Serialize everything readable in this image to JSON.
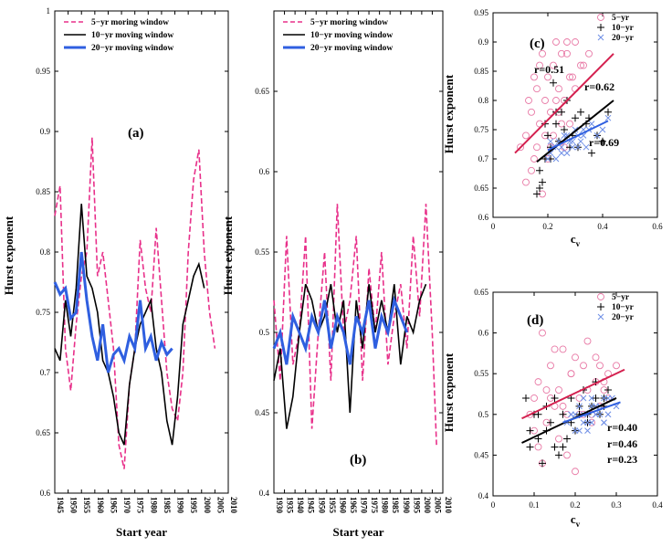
{
  "chart_data": [
    {
      "panel": "(a)",
      "type": "line",
      "ylabel": "Hurst exponent",
      "xlabel": "Start year",
      "ylim": [
        0.6,
        1.0
      ],
      "yticks": [
        "0.6",
        "0.65",
        "0.7",
        "0.75",
        "0.8",
        "0.85",
        "0.9",
        "0.95",
        "1"
      ],
      "xticks": [
        "1945",
        "1950",
        "1955",
        "1960",
        "1965",
        "1970",
        "1975",
        "1980",
        "1985",
        "1990",
        "1995",
        "2000",
        "2005",
        "2010"
      ],
      "xlim": [
        1945,
        2010
      ],
      "legend": "top",
      "series": [
        {
          "name": "5−yr moring window",
          "color": "#e8308a",
          "dash": "6,3",
          "x": [
            1945,
            1947,
            1949,
            1951,
            1953,
            1955,
            1957,
            1959,
            1961,
            1963,
            1965,
            1967,
            1969,
            1971,
            1973,
            1975,
            1977,
            1979,
            1981,
            1983,
            1985,
            1987,
            1989,
            1991,
            1993,
            1995,
            1997,
            1999,
            2001,
            2003,
            2005
          ],
          "values": [
            0.83,
            0.855,
            0.72,
            0.685,
            0.74,
            0.78,
            0.8,
            0.895,
            0.78,
            0.8,
            0.76,
            0.72,
            0.64,
            0.62,
            0.69,
            0.72,
            0.81,
            0.77,
            0.75,
            0.82,
            0.76,
            0.7,
            0.67,
            0.66,
            0.7,
            0.8,
            0.86,
            0.885,
            0.8,
            0.75,
            0.72
          ]
        },
        {
          "name": "10−yr moving window",
          "color": "#000000",
          "dash": "",
          "x": [
            1945,
            1947,
            1949,
            1951,
            1953,
            1955,
            1957,
            1959,
            1961,
            1963,
            1965,
            1967,
            1969,
            1971,
            1973,
            1975,
            1977,
            1979,
            1981,
            1983,
            1985,
            1987,
            1989,
            1991,
            1993,
            1995,
            1997,
            1999,
            2001
          ],
          "values": [
            0.72,
            0.71,
            0.76,
            0.73,
            0.77,
            0.84,
            0.78,
            0.77,
            0.75,
            0.71,
            0.7,
            0.68,
            0.65,
            0.64,
            0.69,
            0.72,
            0.74,
            0.75,
            0.76,
            0.72,
            0.7,
            0.66,
            0.64,
            0.68,
            0.74,
            0.76,
            0.78,
            0.79,
            0.77
          ]
        },
        {
          "name": "20−yr moving window",
          "color": "#2f5fe0",
          "dash": "",
          "x": [
            1945,
            1947,
            1949,
            1951,
            1953,
            1955,
            1957,
            1959,
            1961,
            1963,
            1965,
            1967,
            1969,
            1971,
            1973,
            1975,
            1977,
            1979,
            1981,
            1983,
            1985,
            1987,
            1989
          ],
          "values": [
            0.775,
            0.765,
            0.77,
            0.745,
            0.75,
            0.8,
            0.76,
            0.73,
            0.71,
            0.74,
            0.7,
            0.715,
            0.72,
            0.71,
            0.73,
            0.72,
            0.76,
            0.72,
            0.73,
            0.71,
            0.725,
            0.715,
            0.72
          ]
        }
      ]
    },
    {
      "panel": "(b)",
      "type": "line",
      "ylabel": "Hurst exponent",
      "xlabel": "Start year",
      "ylim": [
        0.4,
        0.7
      ],
      "yticks": [
        "0.4",
        "0.45",
        "0.5",
        "0.55",
        "0.6",
        "0.65"
      ],
      "xticks": [
        "1930",
        "1935",
        "1940",
        "1945",
        "1950",
        "1955",
        "1960",
        "1965",
        "1970",
        "1975",
        "1980",
        "1985",
        "1990",
        "1995",
        "2000",
        "2005",
        "2010"
      ],
      "xlim": [
        1930,
        2010
      ],
      "legend": "top",
      "series": [
        {
          "name": "5−yr moring window",
          "color": "#e8308a",
          "dash": "6,3",
          "x": [
            1930,
            1933,
            1936,
            1939,
            1942,
            1945,
            1948,
            1951,
            1954,
            1957,
            1960,
            1963,
            1966,
            1969,
            1972,
            1975,
            1978,
            1981,
            1984,
            1987,
            1990,
            1993,
            1996,
            1999,
            2002,
            2005,
            2007
          ],
          "values": [
            0.52,
            0.47,
            0.56,
            0.48,
            0.5,
            0.56,
            0.44,
            0.5,
            0.55,
            0.47,
            0.58,
            0.5,
            0.52,
            0.56,
            0.47,
            0.54,
            0.5,
            0.55,
            0.48,
            0.51,
            0.53,
            0.49,
            0.56,
            0.51,
            0.58,
            0.5,
            0.43
          ]
        },
        {
          "name": "10−yr moving window",
          "color": "#000000",
          "dash": "",
          "x": [
            1930,
            1933,
            1936,
            1939,
            1942,
            1945,
            1948,
            1951,
            1954,
            1957,
            1960,
            1963,
            1966,
            1969,
            1972,
            1975,
            1978,
            1981,
            1984,
            1987,
            1990,
            1993,
            1996,
            1999,
            2002
          ],
          "values": [
            0.47,
            0.49,
            0.44,
            0.46,
            0.5,
            0.53,
            0.52,
            0.5,
            0.51,
            0.53,
            0.5,
            0.52,
            0.45,
            0.52,
            0.49,
            0.53,
            0.5,
            0.52,
            0.5,
            0.53,
            0.48,
            0.51,
            0.5,
            0.52,
            0.53
          ]
        },
        {
          "name": "20−yr moving window",
          "color": "#2f5fe0",
          "dash": "",
          "x": [
            1930,
            1933,
            1936,
            1939,
            1942,
            1945,
            1948,
            1951,
            1954,
            1957,
            1960,
            1963,
            1966,
            1969,
            1972,
            1975,
            1978,
            1981,
            1984,
            1987,
            1990,
            1993
          ],
          "values": [
            0.49,
            0.5,
            0.48,
            0.51,
            0.5,
            0.49,
            0.51,
            0.5,
            0.52,
            0.49,
            0.51,
            0.5,
            0.48,
            0.51,
            0.5,
            0.52,
            0.49,
            0.51,
            0.5,
            0.52,
            0.51,
            0.5
          ]
        }
      ]
    },
    {
      "panel": "(c)",
      "type": "scatter",
      "ylabel": "Hurst exponent",
      "xlabel": "c",
      "xlabel_sub": "v",
      "xlim": [
        0,
        0.6
      ],
      "ylim": [
        0.6,
        0.95
      ],
      "xticks": [
        "0",
        "0.2",
        "0.4",
        "0.6"
      ],
      "yticks": [
        "0.6",
        "0.65",
        "0.7",
        "0.75",
        "0.8",
        "0.85",
        "0.9",
        "0.95"
      ],
      "legend": "top-right",
      "series": [
        {
          "name": "5−yr",
          "marker": "circle",
          "color": "#e87aa6",
          "x": [
            0.1,
            0.12,
            0.14,
            0.15,
            0.16,
            0.17,
            0.18,
            0.19,
            0.2,
            0.21,
            0.22,
            0.23,
            0.24,
            0.25,
            0.26,
            0.27,
            0.28,
            0.3,
            0.32,
            0.35,
            0.12,
            0.14,
            0.16,
            0.18,
            0.2,
            0.22,
            0.24,
            0.26,
            0.28,
            0.3,
            0.13,
            0.15,
            0.17,
            0.19,
            0.21,
            0.23,
            0.25,
            0.27,
            0.29,
            0.33
          ],
          "values": [
            0.72,
            0.74,
            0.78,
            0.7,
            0.82,
            0.76,
            0.88,
            0.8,
            0.84,
            0.78,
            0.86,
            0.9,
            0.82,
            0.76,
            0.8,
            0.88,
            0.84,
            0.9,
            0.86,
            0.88,
            0.66,
            0.68,
            0.72,
            0.64,
            0.7,
            0.74,
            0.78,
            0.72,
            0.76,
            0.82,
            0.8,
            0.84,
            0.86,
            0.74,
            0.72,
            0.8,
            0.88,
            0.9,
            0.84,
            0.86
          ]
        },
        {
          "name": "10−yr",
          "marker": "plus",
          "color": "#000000",
          "x": [
            0.16,
            0.17,
            0.18,
            0.19,
            0.2,
            0.21,
            0.22,
            0.23,
            0.24,
            0.25,
            0.26,
            0.28,
            0.3,
            0.32,
            0.34,
            0.36,
            0.38,
            0.4,
            0.17,
            0.19,
            0.21,
            0.23,
            0.27,
            0.29,
            0.31,
            0.35,
            0.42
          ],
          "values": [
            0.64,
            0.65,
            0.66,
            0.7,
            0.74,
            0.72,
            0.83,
            0.76,
            0.73,
            0.78,
            0.75,
            0.72,
            0.77,
            0.78,
            0.76,
            0.71,
            0.74,
            0.73,
            0.68,
            0.76,
            0.7,
            0.78,
            0.8,
            0.74,
            0.72,
            0.77,
            0.78
          ]
        },
        {
          "name": "20−yr",
          "marker": "x",
          "color": "#6f8fe6",
          "x": [
            0.2,
            0.21,
            0.22,
            0.23,
            0.24,
            0.25,
            0.26,
            0.27,
            0.28,
            0.29,
            0.3,
            0.31,
            0.32,
            0.33,
            0.34,
            0.35,
            0.36,
            0.38,
            0.4,
            0.42,
            0.21,
            0.23,
            0.25,
            0.27,
            0.29,
            0.31,
            0.33
          ],
          "values": [
            0.7,
            0.71,
            0.72,
            0.7,
            0.73,
            0.72,
            0.74,
            0.71,
            0.73,
            0.72,
            0.75,
            0.74,
            0.73,
            0.74,
            0.72,
            0.75,
            0.76,
            0.74,
            0.75,
            0.77,
            0.73,
            0.72,
            0.71,
            0.74,
            0.73,
            0.72,
            0.75
          ]
        }
      ],
      "fits": [
        {
          "series": "5−yr",
          "color": "#d4204f",
          "x": [
            0.08,
            0.44
          ],
          "y": [
            0.71,
            0.88
          ],
          "r": "r=0.51"
        },
        {
          "series": "10−yr",
          "color": "#000000",
          "x": [
            0.16,
            0.44
          ],
          "y": [
            0.695,
            0.8
          ],
          "r": "r=0.62"
        },
        {
          "series": "20−yr",
          "color": "#2f5fe0",
          "x": [
            0.2,
            0.42
          ],
          "y": [
            0.715,
            0.765
          ],
          "r": "r=0.69"
        }
      ]
    },
    {
      "panel": "(d)",
      "type": "scatter",
      "ylabel": "Hurst exponent",
      "xlabel": "c",
      "xlabel_sub": "v",
      "xlim": [
        0,
        0.4
      ],
      "ylim": [
        0.4,
        0.65
      ],
      "xticks": [
        "0",
        "0.1",
        "0.2",
        "0.3",
        "0.4"
      ],
      "yticks": [
        "0.4",
        "0.45",
        "0.5",
        "0.55",
        "0.6",
        "0.65"
      ],
      "legend": "top-right",
      "series": [
        {
          "name": "5−yr",
          "marker": "circle",
          "color": "#e87aa6",
          "x": [
            0.09,
            0.1,
            0.11,
            0.12,
            0.13,
            0.14,
            0.15,
            0.16,
            0.17,
            0.18,
            0.19,
            0.2,
            0.21,
            0.22,
            0.23,
            0.24,
            0.25,
            0.26,
            0.27,
            0.28,
            0.1,
            0.12,
            0.14,
            0.16,
            0.18,
            0.2,
            0.22,
            0.24,
            0.26,
            0.28,
            0.11,
            0.13,
            0.15,
            0.17,
            0.19,
            0.21,
            0.23,
            0.25,
            0.27,
            0.3
          ],
          "values": [
            0.5,
            0.52,
            0.54,
            0.6,
            0.49,
            0.56,
            0.51,
            0.53,
            0.58,
            0.5,
            0.55,
            0.57,
            0.52,
            0.56,
            0.59,
            0.5,
            0.54,
            0.56,
            0.53,
            0.55,
            0.48,
            0.44,
            0.52,
            0.47,
            0.45,
            0.43,
            0.5,
            0.49,
            0.51,
            0.52,
            0.46,
            0.53,
            0.58,
            0.51,
            0.55,
            0.5,
            0.53,
            0.57,
            0.54,
            0.56
          ]
        },
        {
          "name": "10−yr",
          "marker": "plus",
          "color": "#000000",
          "x": [
            0.08,
            0.09,
            0.1,
            0.11,
            0.12,
            0.13,
            0.14,
            0.15,
            0.16,
            0.17,
            0.18,
            0.19,
            0.2,
            0.21,
            0.22,
            0.23,
            0.24,
            0.25,
            0.26,
            0.27,
            0.28,
            0.09,
            0.11,
            0.13,
            0.15,
            0.17,
            0.19,
            0.21,
            0.23,
            0.25,
            0.27
          ],
          "values": [
            0.52,
            0.48,
            0.5,
            0.47,
            0.44,
            0.51,
            0.49,
            0.46,
            0.45,
            0.5,
            0.47,
            0.52,
            0.48,
            0.5,
            0.53,
            0.49,
            0.51,
            0.54,
            0.5,
            0.52,
            0.53,
            0.46,
            0.5,
            0.48,
            0.52,
            0.46,
            0.49,
            0.51,
            0.5,
            0.52,
            0.51
          ]
        },
        {
          "name": "20−yr",
          "marker": "x",
          "color": "#6f8fe6",
          "x": [
            0.18,
            0.19,
            0.2,
            0.21,
            0.22,
            0.23,
            0.24,
            0.25,
            0.26,
            0.27,
            0.28,
            0.29,
            0.3,
            0.2,
            0.22,
            0.24,
            0.26,
            0.28,
            0.21,
            0.23,
            0.25,
            0.27,
            0.19,
            0.22,
            0.24,
            0.26,
            0.28,
            0.23,
            0.25,
            0.27
          ],
          "values": [
            0.49,
            0.5,
            0.48,
            0.51,
            0.5,
            0.49,
            0.52,
            0.5,
            0.51,
            0.49,
            0.5,
            0.52,
            0.51,
            0.5,
            0.49,
            0.51,
            0.5,
            0.52,
            0.48,
            0.5,
            0.51,
            0.49,
            0.5,
            0.52,
            0.49,
            0.51,
            0.5,
            0.48,
            0.5,
            0.52
          ]
        }
      ],
      "fits": [
        {
          "series": "5−yr",
          "color": "#d4204f",
          "x": [
            0.07,
            0.32
          ],
          "y": [
            0.495,
            0.555
          ],
          "r": "r=0.40"
        },
        {
          "series": "10−yr",
          "color": "#000000",
          "x": [
            0.07,
            0.3
          ],
          "y": [
            0.465,
            0.52
          ],
          "r": "r=0.46"
        },
        {
          "series": "20−yr",
          "color": "#2f5fe0",
          "x": [
            0.17,
            0.31
          ],
          "y": [
            0.49,
            0.515
          ],
          "r": "r=0.23"
        }
      ]
    }
  ]
}
